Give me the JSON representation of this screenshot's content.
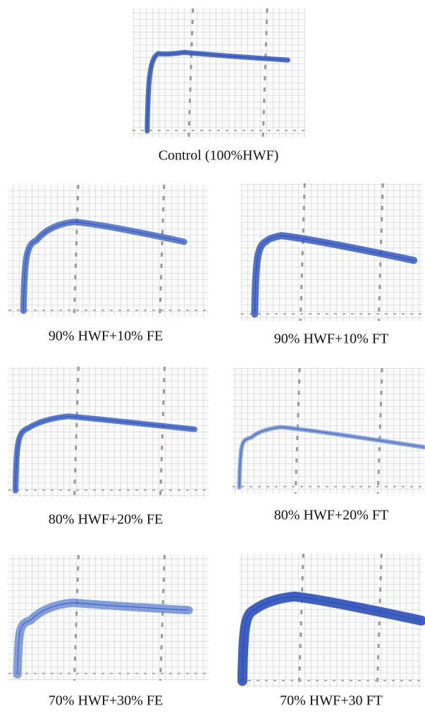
{
  "panels": [
    {
      "caption": "Control (100%HWF)"
    },
    {
      "caption": "90% HWF+10% FE"
    },
    {
      "caption": "90% HWF+10% FT"
    },
    {
      "caption": "80% HWF+20% FE"
    },
    {
      "caption": "80% HWF+20% FT"
    },
    {
      "caption": "70% HWF+30% FE"
    },
    {
      "caption": "70% HWF+30 FT"
    }
  ]
}
